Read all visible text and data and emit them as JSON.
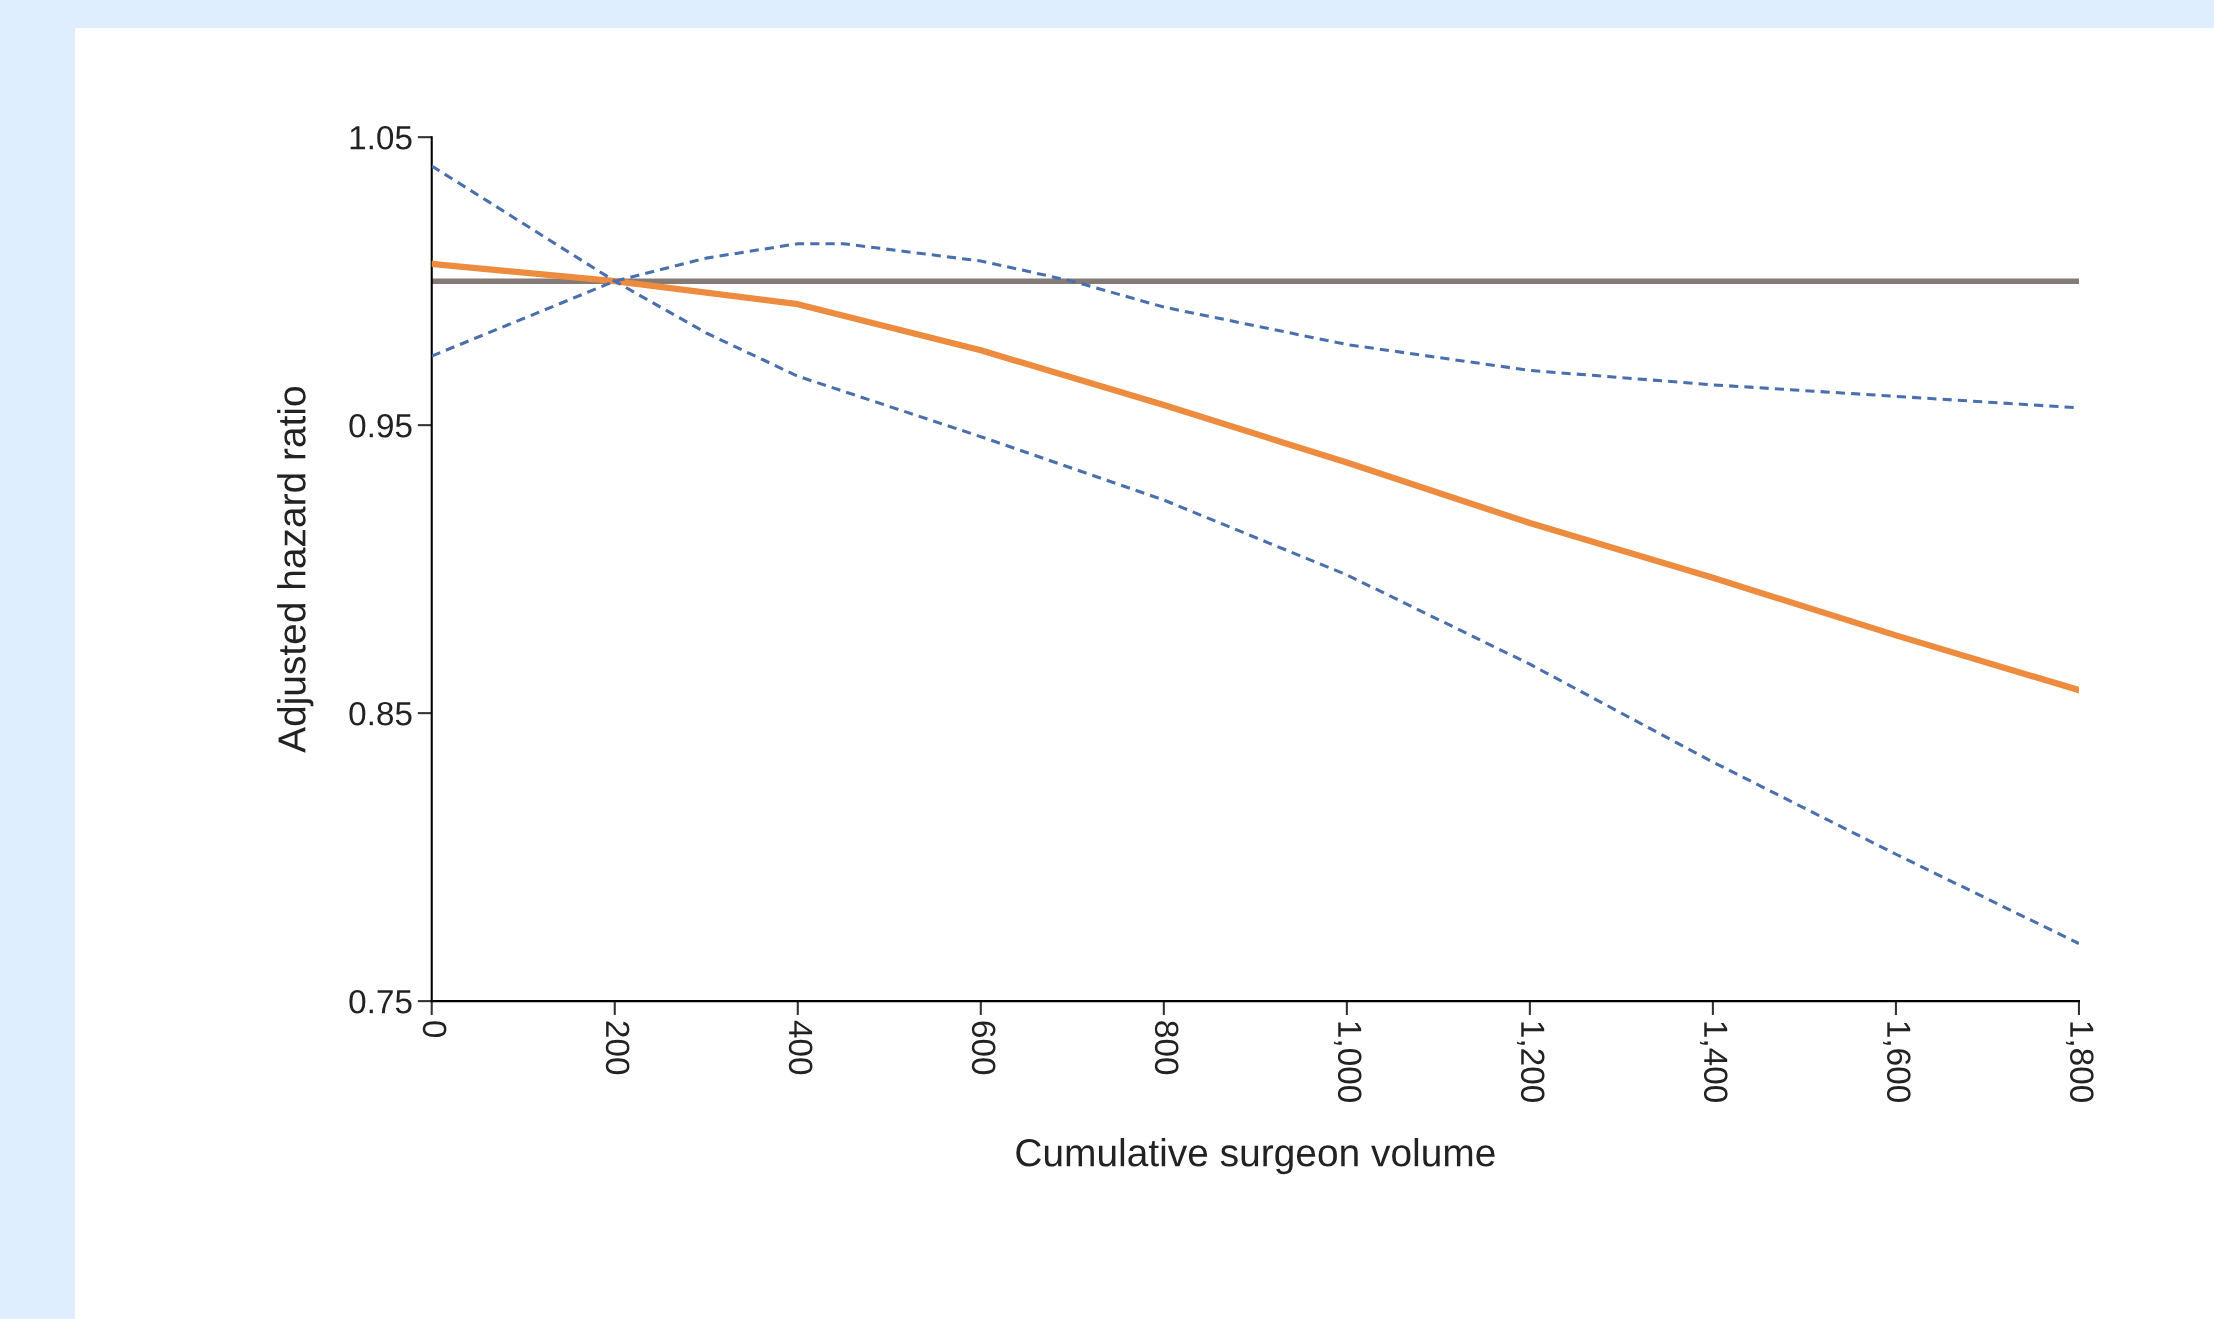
{
  "chart_data": {
    "type": "line",
    "xlabel": "Cumulative surgeon volume",
    "ylabel": "Adjusted hazard ratio",
    "xlim": [
      0,
      1800
    ],
    "ylim": [
      0.75,
      1.05
    ],
    "xticks": [
      0,
      200,
      400,
      600,
      800,
      {
        "value": 1000,
        "label": "1,000"
      },
      {
        "value": 1200,
        "label": "1,200"
      },
      {
        "value": 1400,
        "label": "1,400"
      },
      {
        "value": 1600,
        "label": "1,600"
      },
      {
        "value": 1800,
        "label": "1,800"
      }
    ],
    "yticks": [
      0.75,
      0.85,
      0.95,
      1.05
    ],
    "grid": false,
    "legend": false,
    "marker": "none",
    "x": [
      0,
      200,
      400,
      600,
      800,
      1000,
      1200,
      1400,
      1600,
      1800
    ],
    "series": [
      {
        "color": "#ed8b3f",
        "line_style": "solid",
        "values": [
          1.006,
          1.0,
          0.992,
          0.976,
          0.957,
          0.937,
          0.916,
          0.897,
          0.877,
          0.858
        ]
      },
      {
        "color": "#4a6fad",
        "line_style": "dashed",
        "x": [
          0,
          100,
          200,
          300,
          400,
          450,
          600,
          700,
          800,
          1000,
          1200,
          1400,
          1600,
          1800
        ],
        "values": [
          0.974,
          0.987,
          1.0,
          1.008,
          1.013,
          1.013,
          1.007,
          1.0,
          0.991,
          0.978,
          0.969,
          0.964,
          0.96,
          0.956
        ]
      },
      {
        "color": "#4a6fad",
        "line_style": "dashed",
        "x": [
          0,
          100,
          200,
          300,
          400,
          600,
          800,
          1000,
          1200,
          1400,
          1600,
          1800
        ],
        "values": [
          1.04,
          1.02,
          1.0,
          0.982,
          0.967,
          0.946,
          0.924,
          0.898,
          0.867,
          0.833,
          0.801,
          0.77
        ]
      }
    ],
    "ref_lines": [
      {
        "axis": "y",
        "value": 1.0,
        "color": "#847b76",
        "line_style": "solid"
      }
    ]
  }
}
